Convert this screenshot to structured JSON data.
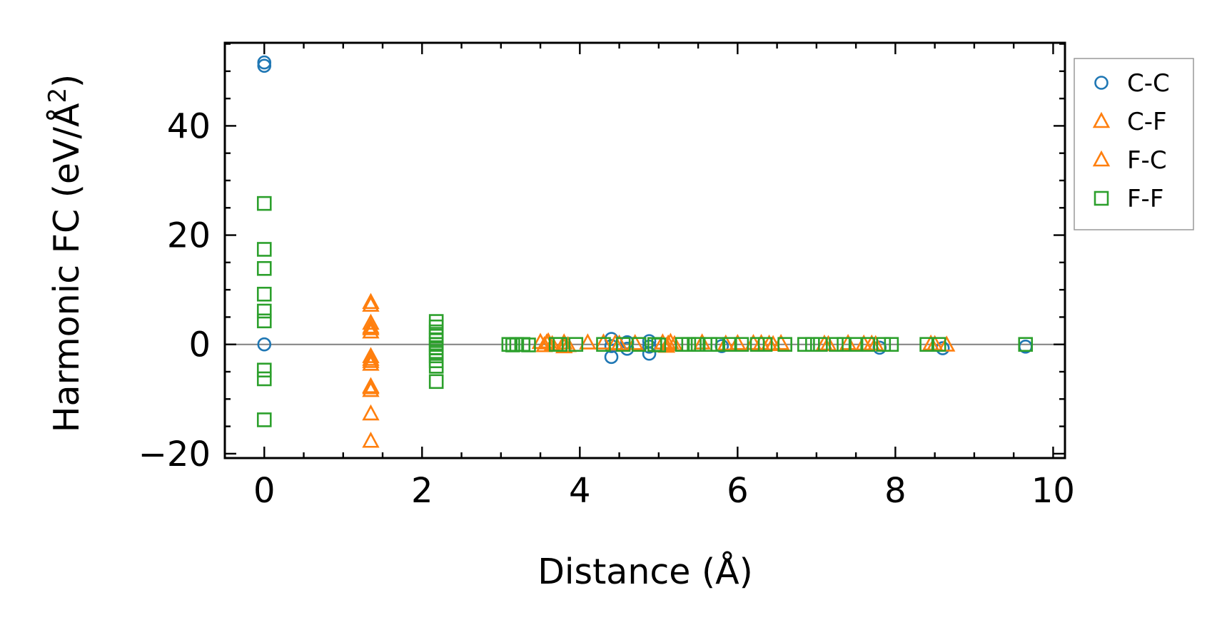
{
  "colors": {
    "cc": "#1f77b4",
    "cf": "#ff7f0e",
    "fc": "#ff7f0e",
    "ff": "#2ca02c",
    "zero_line": "#808080",
    "frame": "#000000",
    "legend_border": "#999999"
  },
  "chart_data": {
    "type": "scatter",
    "xlabel": "Distance (Å)",
    "ylabel_main": "Harmonic FC (eV/Å",
    "ylabel_sup": "2",
    "ylabel_close": ")",
    "xlim": [
      -0.5,
      10.15
    ],
    "ylim": [
      -20.8,
      55.2
    ],
    "x_ticks": [
      0,
      2,
      4,
      6,
      8,
      10
    ],
    "x_tick_labels": [
      "0",
      "2",
      "4",
      "6",
      "8",
      "10"
    ],
    "y_ticks": [
      -20,
      0,
      20,
      40
    ],
    "y_tick_labels": [
      "−20",
      "0",
      "20",
      "40"
    ],
    "x_minor_step": 0.5,
    "y_minor_step": 5,
    "zero_line": true,
    "grid": false,
    "legend_position": "outside-right-top",
    "series": [
      {
        "name": "C-C",
        "marker": "circle",
        "points": [
          [
            0,
            51.0
          ],
          [
            0,
            51.6
          ],
          [
            0,
            0.0
          ],
          [
            4.4,
            1.0
          ],
          [
            4.4,
            -0.3
          ],
          [
            4.4,
            -2.3
          ],
          [
            4.6,
            0.4
          ],
          [
            4.6,
            -0.8
          ],
          [
            4.88,
            0.6
          ],
          [
            4.88,
            -0.4
          ],
          [
            4.88,
            -1.7
          ],
          [
            5.8,
            -0.3
          ],
          [
            7.8,
            -0.6
          ],
          [
            8.6,
            -0.7
          ],
          [
            9.65,
            -0.4
          ]
        ]
      },
      {
        "name": "C-F",
        "marker": "triangle",
        "points": [
          [
            1.35,
            7.7
          ],
          [
            1.35,
            3.9
          ],
          [
            1.35,
            2.9
          ],
          [
            1.35,
            -2.2
          ],
          [
            1.35,
            -3.1
          ],
          [
            1.35,
            -7.7
          ],
          [
            1.35,
            -8.4
          ],
          [
            1.35,
            -12.7
          ],
          [
            1.35,
            -17.7
          ],
          [
            3.5,
            0.4
          ],
          [
            3.55,
            -0.2
          ],
          [
            3.6,
            0.5
          ],
          [
            3.65,
            0.0
          ],
          [
            3.8,
            0.3
          ],
          [
            3.8,
            -0.4
          ],
          [
            4.1,
            0.3
          ],
          [
            4.3,
            0.3
          ],
          [
            4.5,
            0.1
          ],
          [
            4.7,
            0.2
          ],
          [
            5.05,
            0.3
          ],
          [
            5.1,
            -0.3
          ],
          [
            5.15,
            0.4
          ],
          [
            5.2,
            0.0
          ],
          [
            5.55,
            0.3
          ],
          [
            6.0,
            0.2
          ],
          [
            6.2,
            0.2
          ],
          [
            6.3,
            0.2
          ],
          [
            6.4,
            0.1
          ],
          [
            6.55,
            0.2
          ],
          [
            7.1,
            0.1
          ],
          [
            7.4,
            0.2
          ],
          [
            7.6,
            0.1
          ],
          [
            7.7,
            0.1
          ],
          [
            8.45,
            0.1
          ],
          [
            8.65,
            -0.1
          ]
        ]
      },
      {
        "name": "F-C",
        "marker": "triangle",
        "points": [
          [
            1.35,
            7.2
          ],
          [
            1.35,
            3.2
          ],
          [
            1.35,
            2.3
          ],
          [
            1.35,
            -2.7
          ],
          [
            1.35,
            -3.6
          ],
          [
            1.35,
            -7.9
          ],
          [
            3.58,
            0.3
          ],
          [
            3.85,
            -0.2
          ],
          [
            4.45,
            0.2
          ],
          [
            5.12,
            0.1
          ],
          [
            5.85,
            0.1
          ],
          [
            6.45,
            0.0
          ],
          [
            7.15,
            0.0
          ],
          [
            7.75,
            0.0
          ],
          [
            8.5,
            0.0
          ]
        ]
      },
      {
        "name": "F-F",
        "marker": "square",
        "points": [
          [
            0,
            25.8
          ],
          [
            0,
            17.4
          ],
          [
            0,
            13.9
          ],
          [
            0,
            9.2
          ],
          [
            0,
            6.1
          ],
          [
            0,
            4.3
          ],
          [
            0,
            -4.7
          ],
          [
            0,
            -6.3
          ],
          [
            0,
            -13.8
          ],
          [
            2.18,
            4.2
          ],
          [
            2.18,
            3.2
          ],
          [
            2.18,
            2.3
          ],
          [
            2.18,
            1.5
          ],
          [
            2.18,
            0.7
          ],
          [
            2.18,
            0.0
          ],
          [
            2.18,
            -0.6
          ],
          [
            2.18,
            -1.3
          ],
          [
            2.18,
            -2.1
          ],
          [
            2.18,
            -3.0
          ],
          [
            2.18,
            -4.0
          ],
          [
            2.18,
            -6.8
          ],
          [
            3.1,
            0.0
          ],
          [
            3.15,
            -0.1
          ],
          [
            3.2,
            0.0
          ],
          [
            3.28,
            0.0
          ],
          [
            3.35,
            -0.1
          ],
          [
            3.7,
            0.0
          ],
          [
            3.75,
            0.0
          ],
          [
            3.95,
            0.0
          ],
          [
            4.3,
            0.0
          ],
          [
            4.55,
            0.0
          ],
          [
            4.75,
            0.0
          ],
          [
            4.95,
            0.0
          ],
          [
            5.0,
            -0.1
          ],
          [
            5.3,
            0.0
          ],
          [
            5.38,
            0.0
          ],
          [
            5.45,
            0.0
          ],
          [
            5.5,
            0.0
          ],
          [
            5.65,
            0.0
          ],
          [
            5.75,
            0.0
          ],
          [
            5.9,
            0.0
          ],
          [
            6.05,
            0.0
          ],
          [
            6.25,
            0.0
          ],
          [
            6.35,
            0.0
          ],
          [
            6.6,
            0.0
          ],
          [
            6.85,
            0.0
          ],
          [
            6.95,
            0.0
          ],
          [
            7.05,
            0.0
          ],
          [
            7.25,
            0.0
          ],
          [
            7.35,
            0.0
          ],
          [
            7.5,
            0.0
          ],
          [
            7.65,
            0.0
          ],
          [
            7.85,
            0.0
          ],
          [
            7.95,
            0.0
          ],
          [
            8.4,
            0.0
          ],
          [
            8.55,
            0.0
          ],
          [
            9.65,
            0.0
          ]
        ]
      }
    ]
  }
}
